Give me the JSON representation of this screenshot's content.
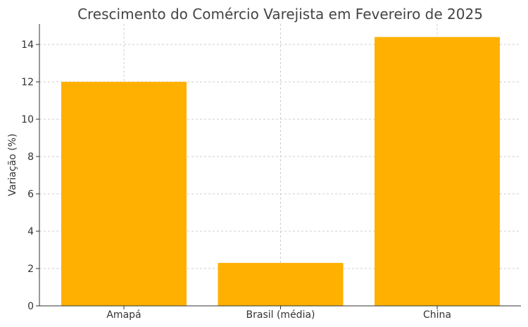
{
  "chart_data": {
    "type": "bar",
    "title": "Crescimento do Comércio Varejista em Fevereiro de 2025",
    "xlabel": "",
    "ylabel": "Variação (%)",
    "categories": [
      "Amapá",
      "Brasil (média)",
      "China"
    ],
    "values": [
      12.0,
      2.3,
      14.4
    ],
    "ylim": [
      0,
      15.1
    ],
    "yticks": [
      0,
      2,
      4,
      6,
      8,
      10,
      12,
      14
    ],
    "grid": true,
    "bar_color": "#FFB000"
  }
}
